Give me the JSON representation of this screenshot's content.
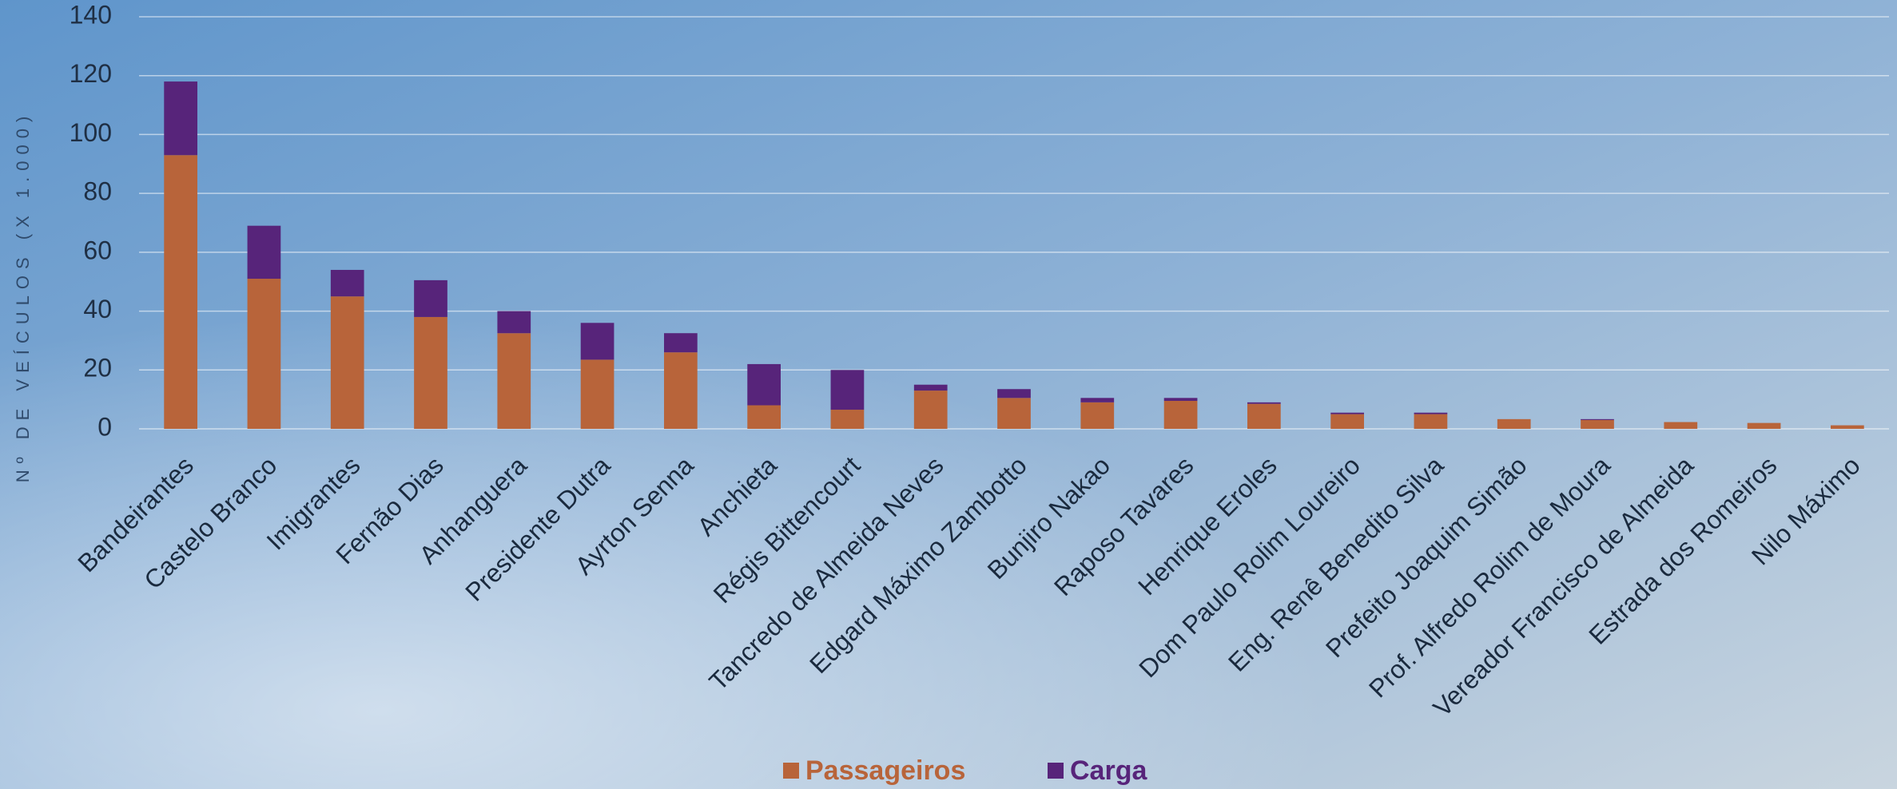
{
  "chart_data": {
    "type": "stacked-bar",
    "y_label": "Nº DE VEÍCULOS (X 1.000)",
    "categories": [
      "Bandeirantes",
      "Castelo Branco",
      "Imigrantes",
      "Fernão Dias",
      "Anhanguera",
      "Presidente Dutra",
      "Ayrton Senna",
      "Anchieta",
      "Régis Bittencourt",
      "Tancredo de Almeida Neves",
      "Edgard Máximo Zambotto",
      "Bunjiro Nakao",
      "Raposo Tavares",
      "Henrique Eroles",
      "Dom Paulo Rolim Loureiro",
      "Eng. Renê Benedito Silva",
      "Prefeito Joaquim Simão",
      "Prof. Alfredo Rolim de Moura",
      "Vereador Francisco de Almeida",
      "Estrada dos Romeiros",
      "Nilo Máximo"
    ],
    "series": [
      {
        "name": "Passageiros",
        "color": "#b8643a",
        "values": [
          93,
          51,
          45,
          38,
          32.5,
          23.5,
          26,
          8,
          6.5,
          13,
          10.5,
          9,
          9.5,
          8.5,
          5,
          5,
          3.3,
          3,
          2.3,
          2,
          1.2
        ]
      },
      {
        "name": "Carga",
        "color": "#57247a",
        "values": [
          25,
          18,
          9,
          12.5,
          7.5,
          12.5,
          6.5,
          14,
          13.5,
          2,
          3,
          1.5,
          1,
          0.5,
          0.5,
          0.5,
          0,
          0.3,
          0,
          0,
          0
        ]
      }
    ],
    "ylim": [
      0,
      140
    ],
    "yticks": [
      0,
      20,
      40,
      60,
      80,
      100,
      120,
      140
    ],
    "grid": true,
    "legend": "bottom"
  }
}
